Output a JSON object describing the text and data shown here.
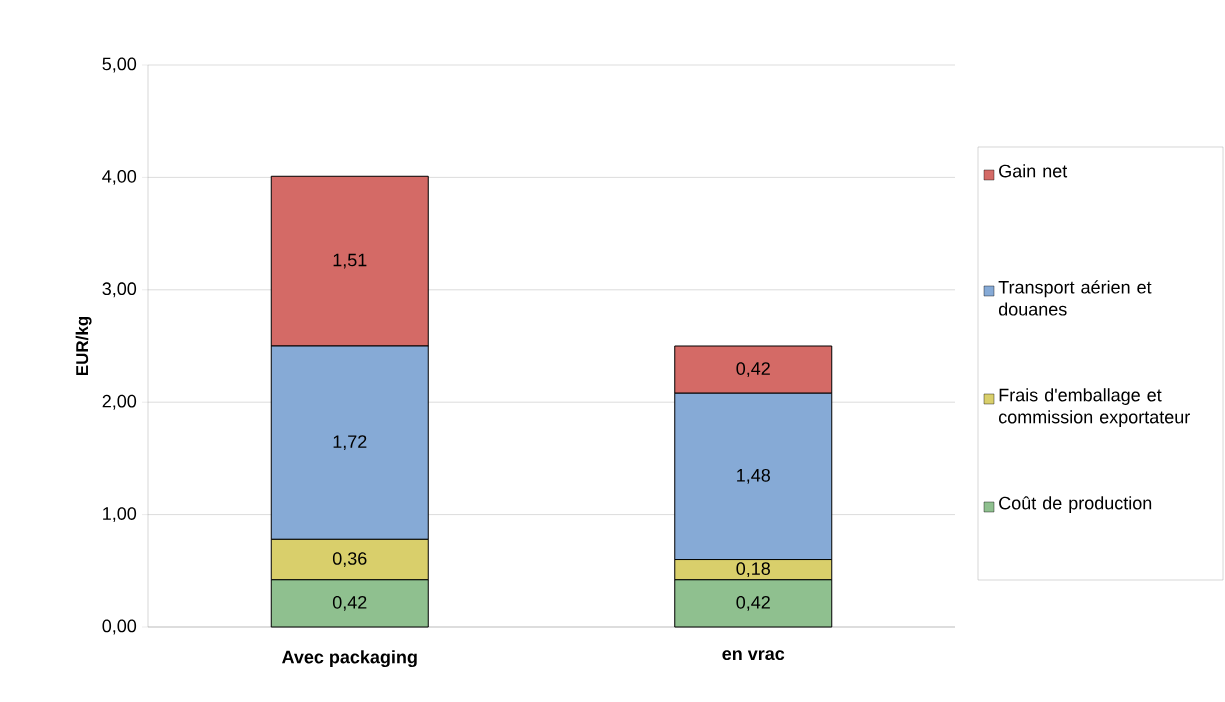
{
  "chart_data": {
    "type": "bar",
    "stacked": true,
    "ylabel": "EUR/kg",
    "categories": [
      "Avec packaging",
      "en vrac"
    ],
    "series": [
      {
        "name": "Coût de production",
        "color": "#8fc08f",
        "values": [
          0.42,
          0.42
        ],
        "value_labels": [
          "0,42",
          "0,42"
        ]
      },
      {
        "name": "Frais d'emballage et commission exportateur",
        "color": "#d9cf6b",
        "values": [
          0.36,
          0.18
        ],
        "value_labels": [
          "0,36",
          "0,18"
        ]
      },
      {
        "name": "Transport aérien et douanes",
        "color": "#86aad6",
        "values": [
          1.72,
          1.48
        ],
        "value_labels": [
          "1,72",
          "1,48"
        ]
      },
      {
        "name": "Gain net",
        "color": "#d46a66",
        "values": [
          1.51,
          0.42
        ],
        "value_labels": [
          "1,51",
          "0,42"
        ]
      }
    ],
    "ylim": [
      0,
      5
    ],
    "yticks": [
      {
        "value": 0,
        "label": "0,00"
      },
      {
        "value": 1,
        "label": "1,00"
      },
      {
        "value": 2,
        "label": "2,00"
      },
      {
        "value": 3,
        "label": "3,00"
      },
      {
        "value": 4,
        "label": "4,00"
      },
      {
        "value": 5,
        "label": "5,00"
      }
    ],
    "grid": "y",
    "legend": "right"
  }
}
